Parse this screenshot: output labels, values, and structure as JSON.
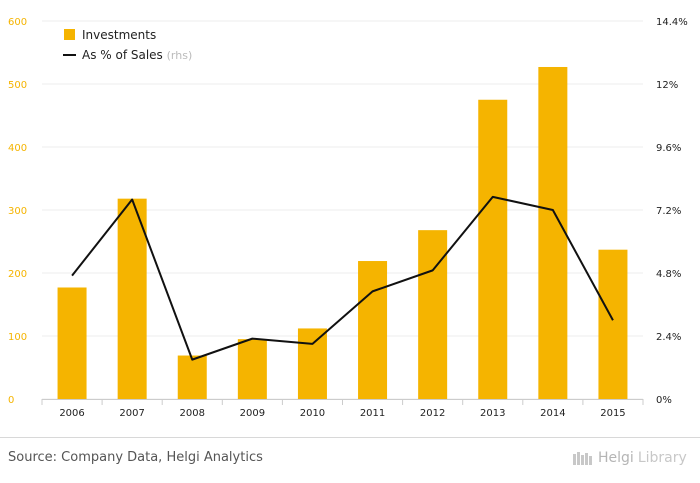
{
  "chart_data": {
    "type": "bar",
    "categories": [
      "2006",
      "2007",
      "2008",
      "2009",
      "2010",
      "2011",
      "2012",
      "2013",
      "2014",
      "2015"
    ],
    "series": [
      {
        "name": "Investments",
        "type": "bar",
        "axis": "left",
        "color": "#f5b400",
        "values": [
          177,
          318,
          69,
          95,
          112,
          219,
          268,
          475,
          527,
          237
        ]
      },
      {
        "name": "As % of Sales",
        "type": "line",
        "axis": "right",
        "color": "#111111",
        "values": [
          4.7,
          7.6,
          1.5,
          2.3,
          2.1,
          4.1,
          4.9,
          7.7,
          7.2,
          3.0
        ]
      }
    ],
    "y_left": {
      "ticks": [
        "0",
        "100",
        "200",
        "300",
        "400",
        "500",
        "600"
      ],
      "ylim": [
        0,
        600
      ]
    },
    "y_right": {
      "ticks": [
        "0%",
        "2.4%",
        "4.8%",
        "7.2%",
        "9.6%",
        "12%",
        "14.4%"
      ],
      "ylim": [
        0,
        14.4
      ]
    },
    "legend": {
      "placement": "top-left",
      "items": [
        {
          "label": "Investments",
          "suffix": "",
          "color": "#f5b400",
          "marker": "square"
        },
        {
          "label": "As % of Sales",
          "suffix": "(rhs)",
          "color": "#111111",
          "marker": "line"
        }
      ]
    },
    "grid": true
  },
  "footer": {
    "source": "Source: Company Data, Helgi Analytics",
    "logo_text": "Helgi",
    "logo_text2": "Library"
  }
}
